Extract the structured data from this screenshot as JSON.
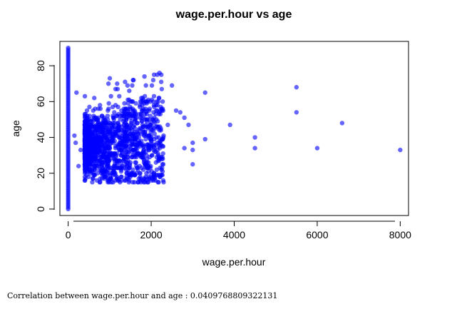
{
  "chart_data": {
    "type": "scatter",
    "title": "wage.per.hour vs age",
    "xlabel": "wage.per.hour",
    "ylabel": "age",
    "xlim": [
      -200,
      8200
    ],
    "ylim": [
      -3.6,
      93.6
    ],
    "xticks": [
      0,
      2000,
      4000,
      6000,
      8000
    ],
    "yticks": [
      0,
      20,
      40,
      60,
      80
    ],
    "point_color": "#0000ff",
    "point_alpha": 0.6,
    "grid": false,
    "legend": "none",
    "wage_zero_age_range": [
      0,
      90
    ],
    "dense_cluster": {
      "wage_range": [
        400,
        2300
      ],
      "age_range": [
        15,
        76
      ]
    },
    "outliers": [
      {
        "x": 2200,
        "y": 76
      },
      {
        "x": 2500,
        "y": 69
      },
      {
        "x": 2400,
        "y": 47
      },
      {
        "x": 2600,
        "y": 55
      },
      {
        "x": 2700,
        "y": 54
      },
      {
        "x": 2800,
        "y": 51
      },
      {
        "x": 2800,
        "y": 34
      },
      {
        "x": 2900,
        "y": 47
      },
      {
        "x": 3000,
        "y": 37
      },
      {
        "x": 3000,
        "y": 33
      },
      {
        "x": 3000,
        "y": 25
      },
      {
        "x": 3300,
        "y": 65
      },
      {
        "x": 3300,
        "y": 39
      },
      {
        "x": 3900,
        "y": 47
      },
      {
        "x": 4500,
        "y": 40
      },
      {
        "x": 4500,
        "y": 34
      },
      {
        "x": 5500,
        "y": 68
      },
      {
        "x": 5500,
        "y": 54
      },
      {
        "x": 6000,
        "y": 34
      },
      {
        "x": 6600,
        "y": 48
      },
      {
        "x": 8000,
        "y": 33
      },
      {
        "x": 200,
        "y": 65
      },
      {
        "x": 150,
        "y": 41
      },
      {
        "x": 180,
        "y": 37
      },
      {
        "x": 250,
        "y": 24
      },
      {
        "x": 300,
        "y": 33
      }
    ]
  },
  "footnote": "Correlation between wage.per.hour and age : 0.0409768809322131"
}
